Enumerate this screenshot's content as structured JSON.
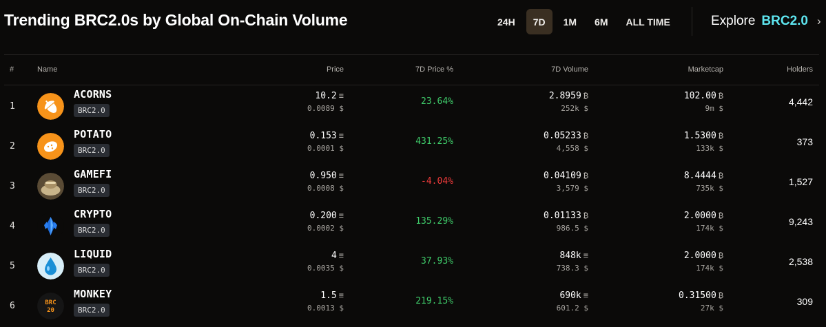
{
  "header": {
    "title": "Trending BRC2.0s by Global On-Chain Volume",
    "ranges": [
      "24H",
      "7D",
      "1M",
      "6M",
      "ALL TIME"
    ],
    "active_range": "7D",
    "explore_label": "Explore",
    "explore_brand": "BRC2.0",
    "explore_chevron": "›"
  },
  "table": {
    "columns": [
      "#",
      "Name",
      "Price",
      "7D Price %",
      "7D Volume",
      "Marketcap",
      "Holders"
    ],
    "rows": [
      {
        "rank": "1",
        "name": "ACORNS",
        "tag": "BRC2.0",
        "icon": "acorn-icon",
        "icon_color": "#f7931a",
        "price": "10.2",
        "price_sub": "0.0089 $",
        "price_unit": "≡",
        "change": "23.64%",
        "change_sign": "pos",
        "volume": "2.8959",
        "volume_unit": "₿",
        "volume_sub": "252k $",
        "mcap": "102.00",
        "mcap_sub": "9m $",
        "holders": "4,442"
      },
      {
        "rank": "2",
        "name": "POTATO",
        "tag": "BRC2.0",
        "icon": "potato-icon",
        "icon_color": "#f7931a",
        "price": "0.153",
        "price_sub": "0.0001 $",
        "price_unit": "≡",
        "change": "431.25%",
        "change_sign": "pos",
        "volume": "0.05233",
        "volume_unit": "₿",
        "volume_sub": "4,558 $",
        "mcap": "1.5300",
        "mcap_sub": "133k $",
        "holders": "373"
      },
      {
        "rank": "3",
        "name": "GAMEFI",
        "tag": "BRC2.0",
        "icon": "gamefi-icon",
        "icon_color": "#7a6a50",
        "price": "0.950",
        "price_sub": "0.0008 $",
        "price_unit": "≡",
        "change": "-4.04%",
        "change_sign": "neg",
        "volume": "0.04109",
        "volume_unit": "₿",
        "volume_sub": "3,579 $",
        "mcap": "8.4444",
        "mcap_sub": "735k $",
        "holders": "1,527"
      },
      {
        "rank": "4",
        "name": "CRYPTO",
        "tag": "BRC2.0",
        "icon": "crystal-icon",
        "icon_color": "#0b0a09",
        "price": "0.200",
        "price_sub": "0.0002 $",
        "price_unit": "≡",
        "change": "135.29%",
        "change_sign": "pos",
        "volume": "0.01133",
        "volume_unit": "₿",
        "volume_sub": "986.5 $",
        "mcap": "2.0000",
        "mcap_sub": "174k $",
        "holders": "9,243"
      },
      {
        "rank": "5",
        "name": "LIQUID",
        "tag": "BRC2.0",
        "icon": "droplet-icon",
        "icon_color": "#d7eef8",
        "price": "4",
        "price_sub": "0.0035 $",
        "price_unit": "≡",
        "change": "37.93%",
        "change_sign": "pos",
        "volume": "848k",
        "volume_unit": "≡",
        "volume_sub": "738.3 $",
        "mcap": "2.0000",
        "mcap_sub": "174k $",
        "holders": "2,538"
      },
      {
        "rank": "6",
        "name": "MONKEY",
        "tag": "BRC2.0",
        "icon": "brc20-logo-icon",
        "icon_color": "#151515",
        "logo_text": "BRC 20",
        "price": "1.5",
        "price_sub": "0.0013 $",
        "price_unit": "≡",
        "change": "219.15%",
        "change_sign": "pos",
        "volume": "690k",
        "volume_unit": "≡",
        "volume_sub": "601.2 $",
        "mcap": "0.31500",
        "mcap_sub": "27k $",
        "holders": "309"
      }
    ],
    "mcap_unit": "₿"
  }
}
